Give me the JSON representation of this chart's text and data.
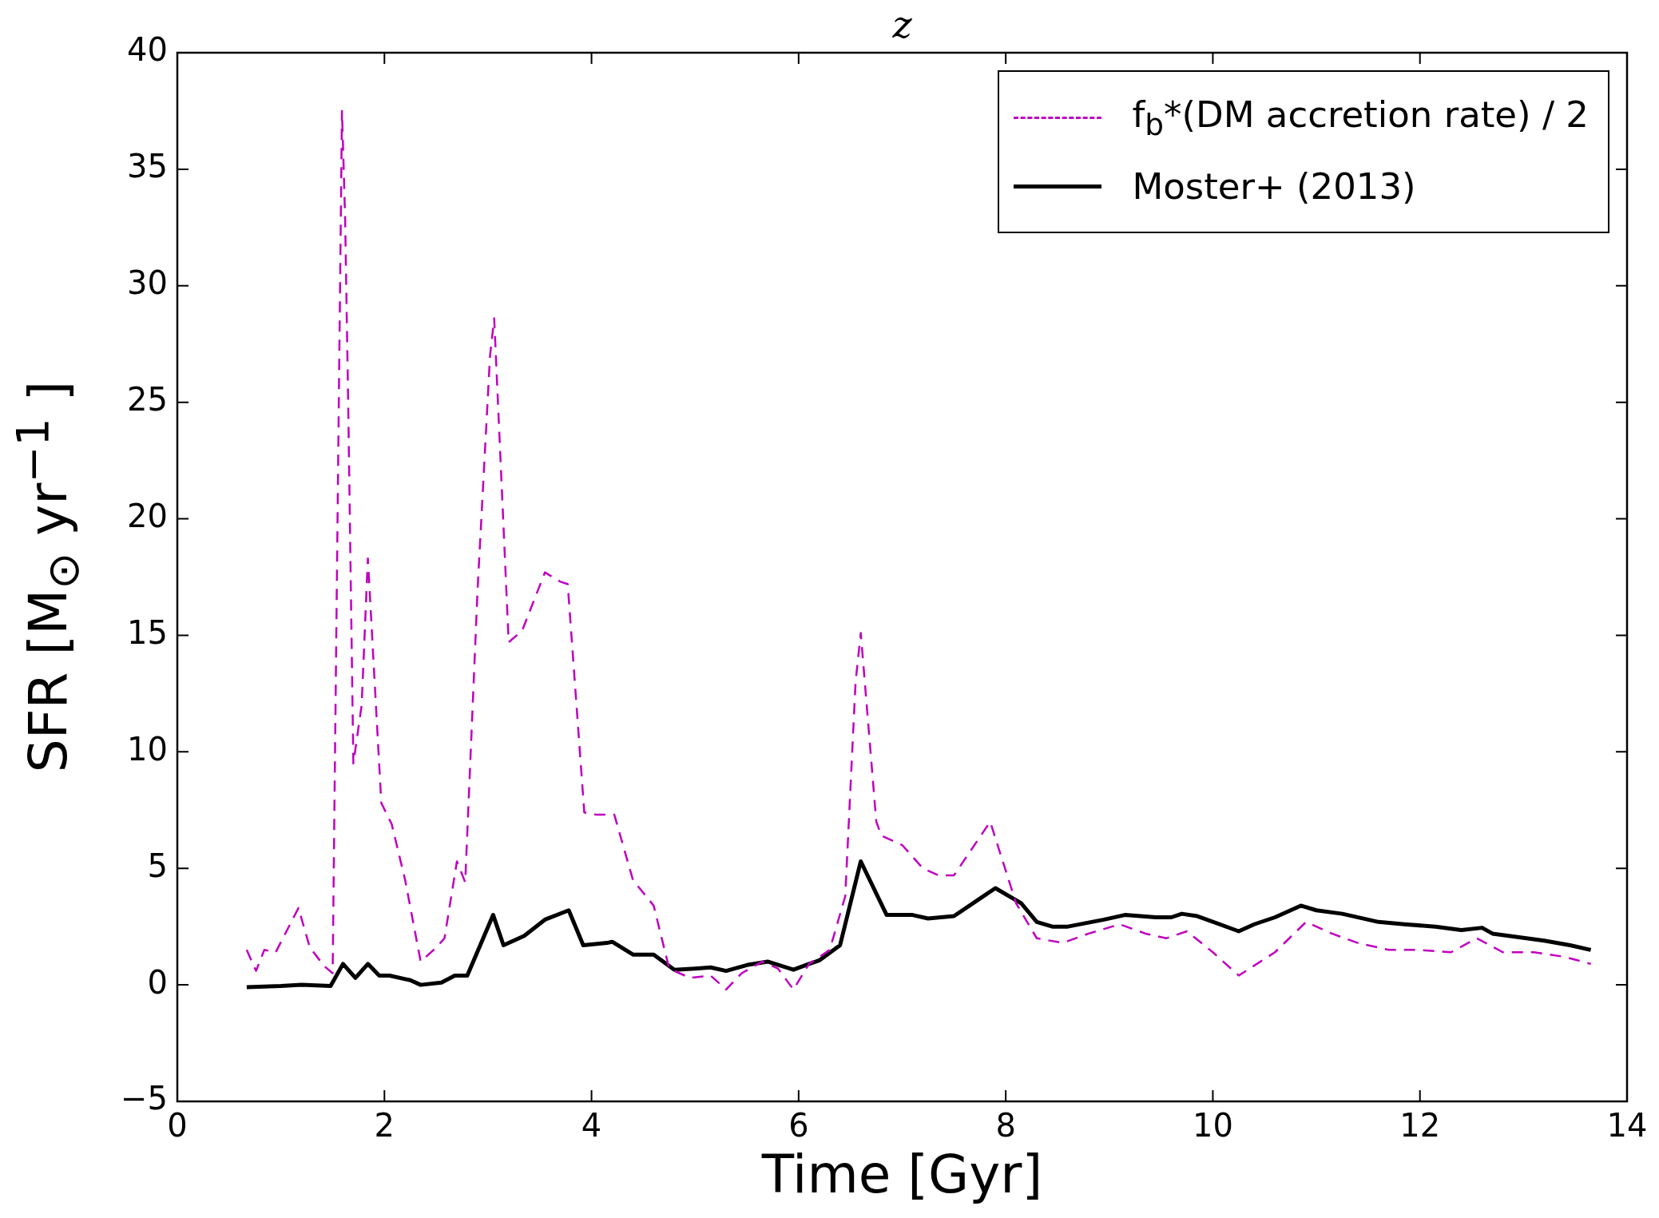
{
  "chart_data": {
    "type": "line",
    "title": "z",
    "xlabel": "Time [Gyr]",
    "ylabel": "SFR [M$_{⊙}$ yr$^{−1}$ ]",
    "xlim": [
      0,
      14
    ],
    "xticks": [
      0,
      2,
      4,
      6,
      8,
      10,
      12,
      14
    ],
    "ylim": [
      -5,
      40
    ],
    "yticks": [
      {
        "value": -5,
        "label": "−5"
      },
      0,
      5,
      10,
      15,
      20,
      25,
      30,
      35,
      40
    ],
    "grid": false,
    "legend": "top right",
    "marker": "none",
    "series": [
      {
        "name": "f$_{b}$*(DM accretion rate) / 2",
        "color": "#bf00bf",
        "line_style": "dashed",
        "x": [
          0.67,
          0.76,
          0.84,
          0.95,
          1.17,
          1.28,
          1.42,
          1.5,
          1.59,
          1.62,
          1.65,
          1.7,
          1.78,
          1.84,
          1.97,
          2.07,
          2.2,
          2.35,
          2.5,
          2.58,
          2.7,
          2.78,
          2.9,
          3.02,
          3.06,
          3.2,
          3.33,
          3.55,
          3.7,
          3.77,
          3.93,
          4.05,
          4.22,
          4.4,
          4.6,
          4.75,
          4.95,
          5.15,
          5.3,
          5.45,
          5.65,
          5.8,
          5.95,
          6.1,
          6.3,
          6.45,
          6.55,
          6.6,
          6.75,
          6.8,
          7.0,
          7.2,
          7.35,
          7.5,
          7.85,
          8.1,
          8.3,
          8.55,
          8.8,
          9.1,
          9.35,
          9.55,
          9.75,
          10.0,
          10.25,
          10.6,
          10.9,
          11.15,
          11.4,
          11.7,
          12.0,
          12.3,
          12.55,
          12.8,
          13.1,
          13.4,
          13.65
        ],
        "values": [
          1.5,
          0.6,
          1.5,
          1.4,
          3.3,
          1.6,
          0.8,
          0.5,
          37.5,
          33,
          25,
          9.5,
          12,
          18.3,
          7.8,
          6.9,
          4.5,
          1,
          1.6,
          2,
          5.3,
          4.4,
          17,
          27,
          28.6,
          14.7,
          15.2,
          17.7,
          17.3,
          17.2,
          7.4,
          7.3,
          7.3,
          4.5,
          3.4,
          0.7,
          0.3,
          0.4,
          -0.2,
          0.5,
          1.0,
          0.7,
          -0.2,
          0.9,
          1.5,
          3.8,
          13,
          15.1,
          7,
          6.4,
          6.0,
          5,
          4.7,
          4.7,
          7.0,
          3.5,
          2.0,
          1.8,
          2.2,
          2.6,
          2.2,
          2.0,
          2.3,
          1.4,
          0.4,
          1.4,
          2.7,
          2.2,
          1.8,
          1.5,
          1.5,
          1.4,
          2.0,
          1.4,
          1.4,
          1.2,
          0.9
        ]
      },
      {
        "name": "Moster+ (2013)",
        "color": "#000000",
        "line_style": "solid",
        "x": [
          0.67,
          1.0,
          1.2,
          1.48,
          1.6,
          1.72,
          1.84,
          1.95,
          2.05,
          2.25,
          2.35,
          2.55,
          2.68,
          2.8,
          3.05,
          3.15,
          3.35,
          3.55,
          3.78,
          3.92,
          4.15,
          4.2,
          4.4,
          4.6,
          4.8,
          5.0,
          5.15,
          5.3,
          5.5,
          5.7,
          5.95,
          6.1,
          6.2,
          6.4,
          6.6,
          6.85,
          7.1,
          7.25,
          7.5,
          7.75,
          7.9,
          8.15,
          8.3,
          8.45,
          8.6,
          8.95,
          9.15,
          9.45,
          9.6,
          9.7,
          9.85,
          10.25,
          10.4,
          10.6,
          10.85,
          11.0,
          11.25,
          11.6,
          11.85,
          12.15,
          12.4,
          12.6,
          12.7,
          13.2,
          13.45,
          13.65
        ],
        "values": [
          -0.1,
          -0.05,
          0,
          -0.05,
          0.9,
          0.3,
          0.9,
          0.4,
          0.4,
          0.2,
          0,
          0.1,
          0.4,
          0.4,
          3.0,
          1.7,
          2.1,
          2.8,
          3.2,
          1.7,
          1.8,
          1.85,
          1.3,
          1.3,
          0.65,
          0.7,
          0.75,
          0.6,
          0.85,
          1.0,
          0.65,
          0.9,
          1.05,
          1.7,
          5.3,
          3.0,
          3.0,
          2.85,
          2.95,
          3.7,
          4.15,
          3.5,
          2.7,
          2.5,
          2.5,
          2.8,
          3.0,
          2.9,
          2.9,
          3.05,
          2.95,
          2.3,
          2.6,
          2.9,
          3.4,
          3.2,
          3.05,
          2.7,
          2.6,
          2.5,
          2.35,
          2.45,
          2.2,
          1.9,
          1.7,
          1.5
        ]
      }
    ]
  }
}
